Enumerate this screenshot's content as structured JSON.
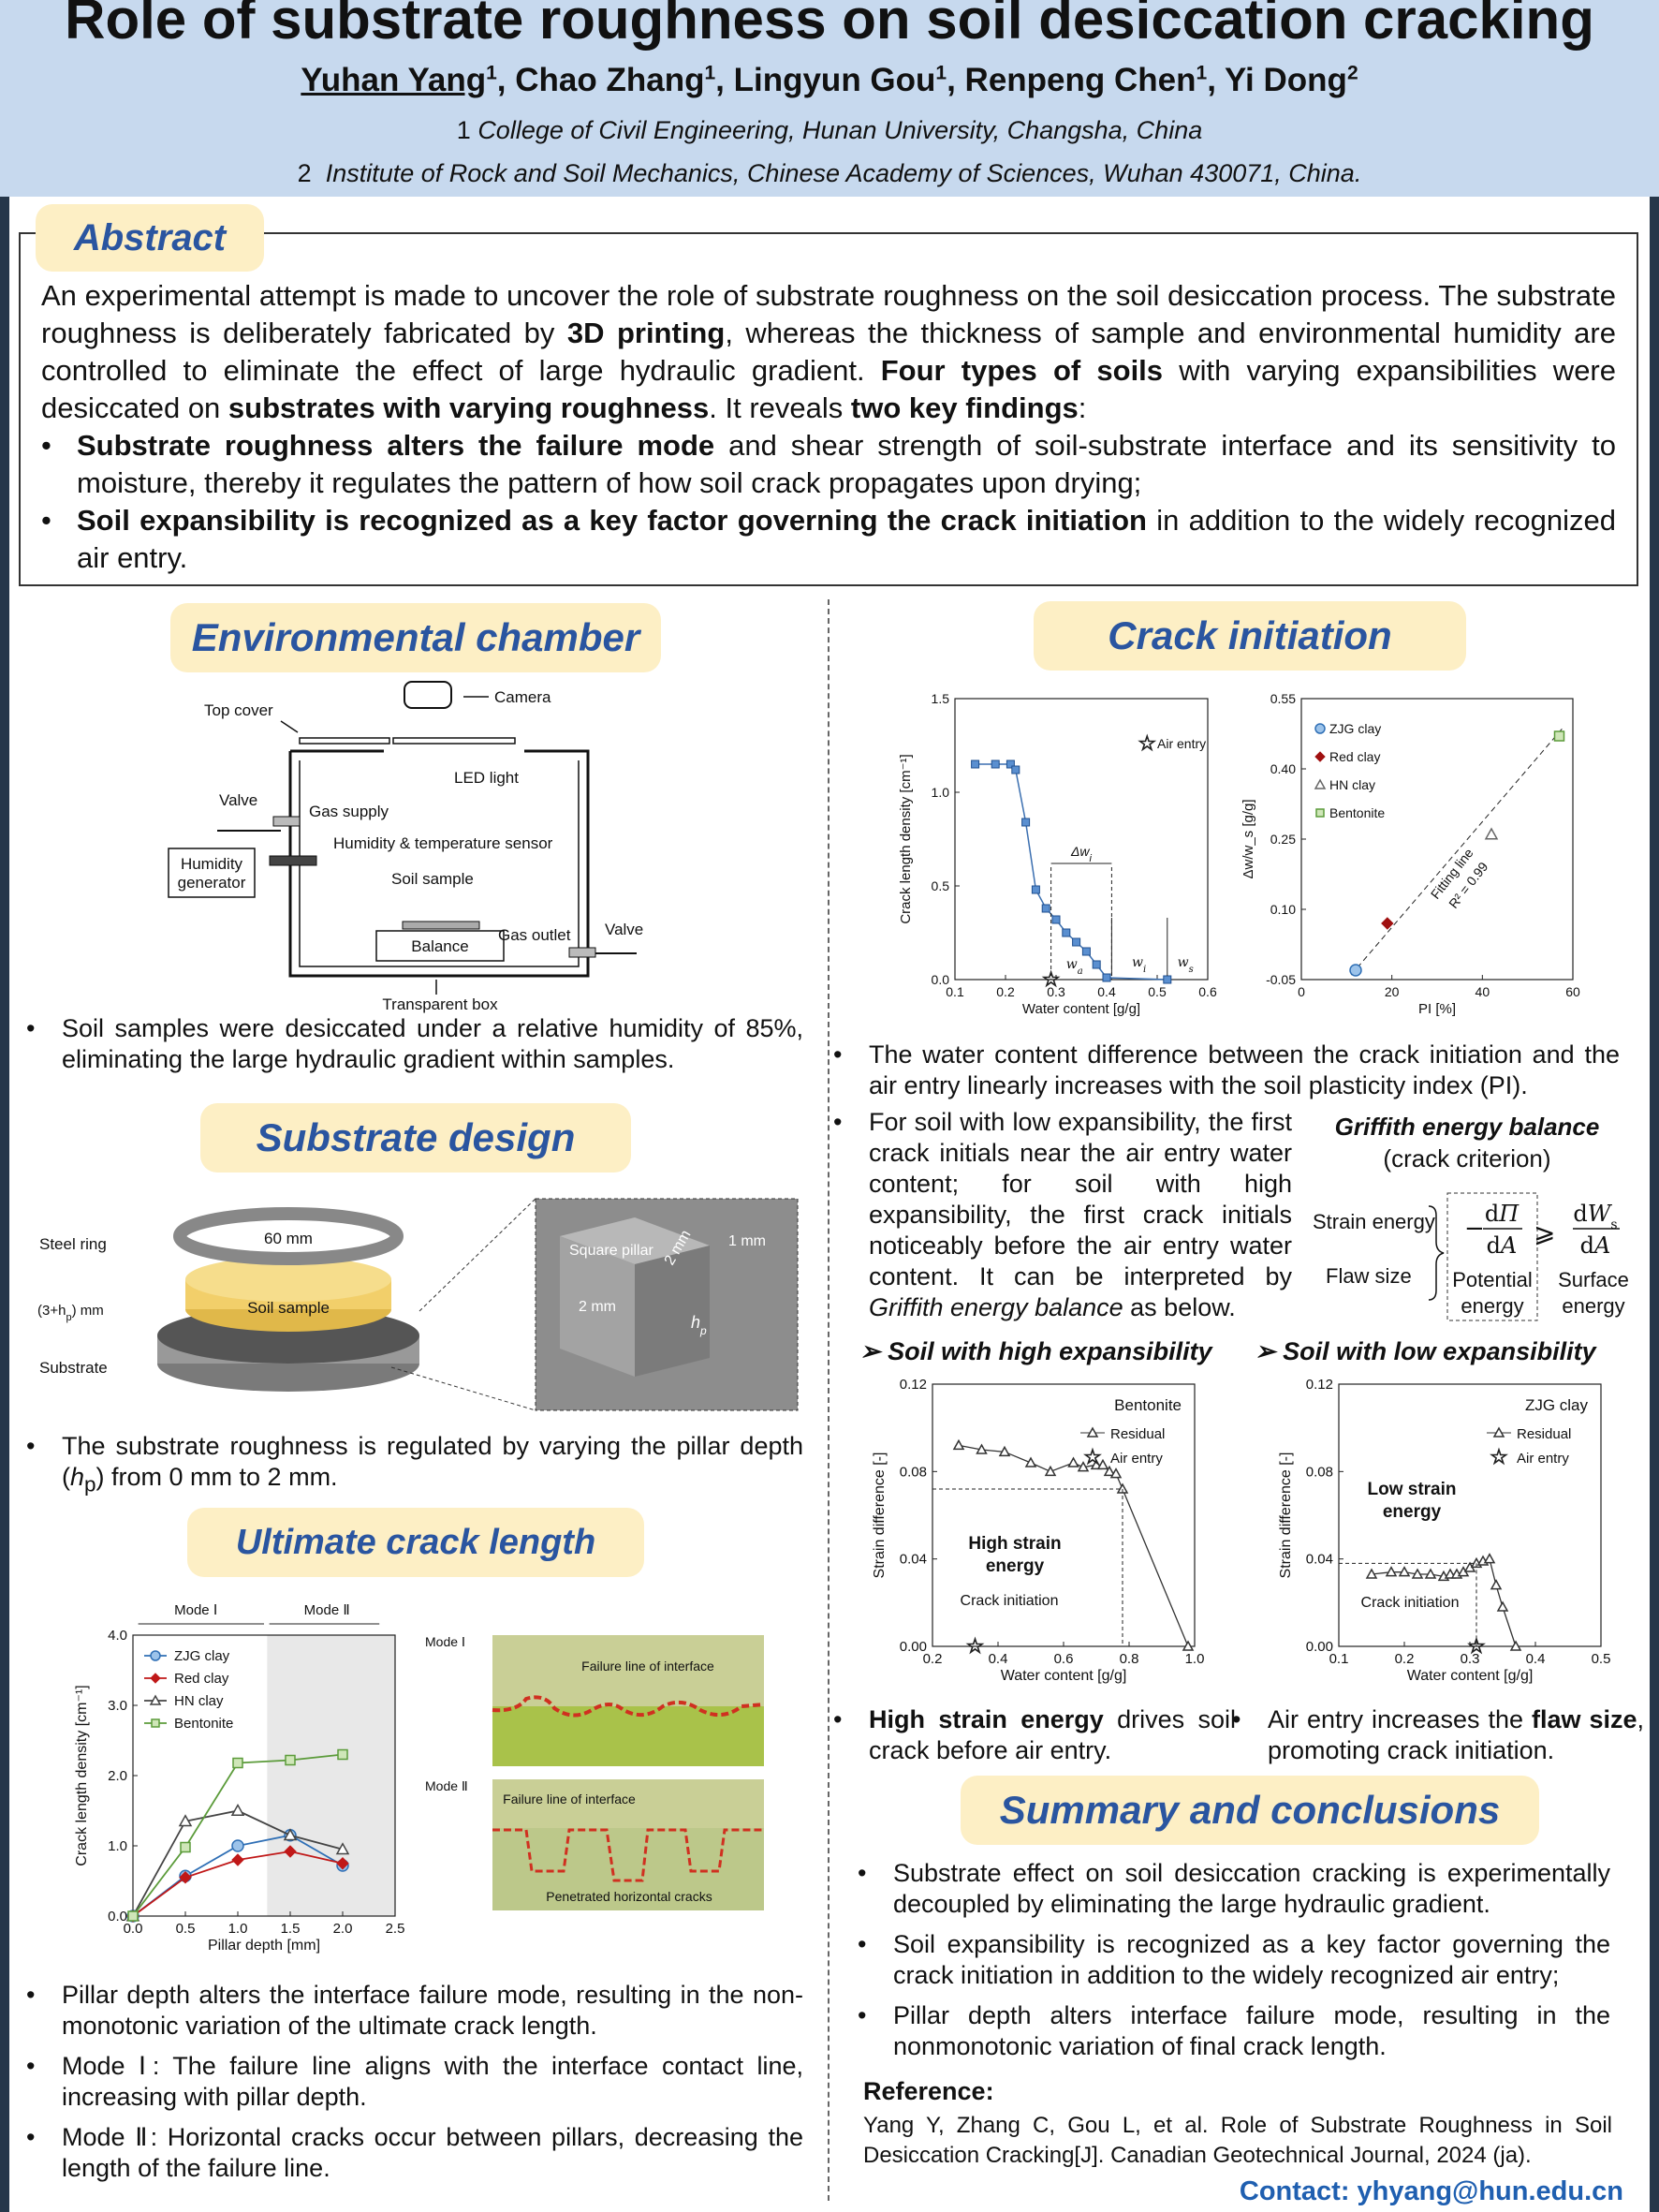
{
  "header": {
    "title": "Role of substrate roughness on soil desiccation cracking",
    "authors": [
      {
        "name": "Yuhan Yang",
        "sup": "1",
        "underline": true
      },
      {
        "name": "Chao Zhang",
        "sup": "1"
      },
      {
        "name": "Lingyun Gou",
        "sup": "1"
      },
      {
        "name": "Renpeng Chen",
        "sup": "1"
      },
      {
        "name": "Yi Dong",
        "sup": "2"
      }
    ],
    "affiliation_1_num": "1",
    "affiliation_1": "College of Civil Engineering, Hunan University, Changsha, China",
    "affiliation_2_num": "2",
    "affiliation_2": "Institute of Rock and Soil Mechanics, Chinese Academy of Sciences, Wuhan 430071, China."
  },
  "abstract": {
    "heading": "Abstract",
    "p1_a": "An experimental attempt is made to uncover the role of substrate roughness on the soil desiccation process. The substrate roughness is deliberately fabricated by ",
    "p1_b": "3D printing",
    "p1_c": ", whereas the thickness of sample and environmental humidity are controlled to eliminate the effect of large hydraulic gradient. ",
    "p1_d": "Four types of soils",
    "p1_e": " with varying expansibilities were desiccated on ",
    "p1_f": "substrates with varying roughness",
    "p1_g": ". It reveals ",
    "p1_h": "two key findings",
    "p1_i": ":",
    "bullet": "•",
    "b1_bold": "Substrate roughness alters the failure mode",
    "b1_rest": " and shear strength of soil-substrate interface and its sensitivity to moisture, thereby it regulates the pattern of how soil crack propagates upon drying;",
    "b2_bold": "Soil expansibility is recognized as a key factor governing the crack initiation",
    "b2_rest": " in addition to the widely recognized air entry."
  },
  "env": {
    "heading": "Environmental chamber",
    "labels": {
      "camera": "Camera",
      "top_cover": "Top cover",
      "led": "LED light",
      "valve1": "Valve",
      "gas_supply": "Gas supply",
      "hum_sensor": "Humidity & temperature sensor",
      "hum_gen1": "Humidity",
      "hum_gen2": "generator",
      "soil_sample": "Soil sample",
      "gas_outlet": "Gas outlet",
      "valve2": "Valve",
      "balance": "Balance",
      "box": "Transparent box"
    },
    "bullet": "Soil samples were desiccated under a relative humidity of 85%, eliminating the large hydraulic gradient within samples."
  },
  "substrate": {
    "heading": "Substrate design",
    "labels": {
      "steel_ring": "Steel ring",
      "mm60": "60 mm",
      "thick": "(3+h",
      "thick_sub": "p",
      "thick_end": ") mm",
      "soil": "Soil sample",
      "substrate": "Substrate",
      "square_pillar": "Square pillar",
      "mm2a": "2 mm",
      "mm2b": "2 mm",
      "mm1": "1 mm",
      "hp": "h",
      "hp_sub": "p"
    },
    "bullet_a": "The substrate roughness is regulated by varying the pillar depth (",
    "bullet_h": "h",
    "bullet_p": "p",
    "bullet_b": ") from 0 mm to 2 mm."
  },
  "ultimate": {
    "heading": "Ultimate crack length",
    "mode1": "Mode Ⅰ",
    "mode2": "Mode Ⅱ",
    "photo_mode1": "Mode Ⅰ",
    "photo_mode2": "Mode Ⅱ",
    "failure_line1": "Failure line of interface",
    "failure_line2": "Failure line of interface",
    "penetrated": "Penetrated horizontal cracks",
    "bullets": [
      "Pillar depth alters the interface failure mode, resulting in the non-monotonic variation of the ultimate crack length.",
      "Mode Ⅰ: The failure line aligns with the interface contact line, increasing with pillar depth.",
      "Mode Ⅱ:  Horizontal cracks occur between pillars, decreasing the length of the failure line."
    ]
  },
  "crack_init": {
    "heading": "Crack initiation",
    "bullet1": "The water content difference between the crack initiation and the air entry linearly increases with the soil plasticity index (PI).",
    "bullet2_a": "For soil with low expansibility, the first crack initials near the air entry water content; for soil with high expansibility, the first crack initials noticeably before the air entry water content. It can be interpreted by ",
    "bullet2_i": "Griffith energy balance",
    "bullet2_b": " as below.",
    "griffith_title": "Griffith energy balance",
    "griffith_sub": "(crack criterion)",
    "strain_energy": "Strain energy",
    "flaw_size": "Flaw size",
    "potential": "Potential",
    "surface": "Surface",
    "energy": "energy",
    "high_head": "Soil with high expansibility",
    "low_head": "Soil with low expansibility",
    "high_bullet_bold": "High strain energy",
    "high_bullet_rest": " drives soil crack before air entry.",
    "low_bullet_a": "Air entry increases the ",
    "low_bullet_bold": "flaw size",
    "low_bullet_b": ", promoting crack initiation."
  },
  "summary": {
    "heading": "Summary and conclusions",
    "bullets": [
      "Substrate effect on soil desiccation cracking is experimentally decoupled by eliminating the large hydraulic gradient.",
      "Soil expansibility is recognized as a key factor governing the crack initiation in addition to the widely recognized air entry;",
      "Pillar depth alters interface failure mode, resulting in the nonmonotonic variation of final crack length."
    ],
    "ref_head": "Reference:",
    "ref_text": "Yang Y, Zhang C, Gou L, et al. Role of Substrate Roughness in Soil Desiccation Cracking[J]. Canadian Geotechnical Journal, 2024 (ja).",
    "contact": "Contact: yhyang@hun.edu.cn"
  },
  "chart_data": [
    {
      "id": "ultimate_crack",
      "type": "line",
      "xlabel": "Pillar depth [mm]",
      "ylabel": "Crack length density [cm⁻¹]",
      "xlim": [
        0,
        2.5
      ],
      "ylim": [
        0,
        4.0
      ],
      "xticks": [
        "0.0",
        "0.5",
        "1.0",
        "1.5",
        "2.0",
        "2.5"
      ],
      "yticks": [
        "0.0",
        "1.0",
        "2.0",
        "3.0",
        "4.0"
      ],
      "x": [
        0,
        0.5,
        1.0,
        1.5,
        2.0
      ],
      "series": [
        {
          "name": "ZJG clay",
          "color": "#2f6fb5",
          "marker": "circle",
          "values": [
            0,
            0.57,
            1.0,
            1.15,
            0.72
          ]
        },
        {
          "name": "Red clay",
          "color": "#c01818",
          "marker": "diamond",
          "values": [
            0,
            0.55,
            0.8,
            0.92,
            0.75
          ]
        },
        {
          "name": "HN clay",
          "color": "#444444",
          "marker": "triangle",
          "values": [
            0,
            1.35,
            1.5,
            1.15,
            0.95
          ]
        },
        {
          "name": "Bentonite",
          "color": "#5b9b3a",
          "marker": "square",
          "values": [
            0,
            0.98,
            2.18,
            2.22,
            2.3
          ]
        }
      ]
    },
    {
      "id": "crack_density",
      "type": "line",
      "xlabel": "Water content [g/g]",
      "ylabel": "Crack length density [cm⁻¹]",
      "xlim": [
        0.1,
        0.6
      ],
      "ylim": [
        0,
        1.5
      ],
      "xticks": [
        "0.1",
        "0.2",
        "0.3",
        "0.4",
        "0.5",
        "0.6"
      ],
      "yticks": [
        "0.0",
        "0.5",
        "1.0",
        "1.5"
      ],
      "legend": "Air entry",
      "dw_label": "Δw",
      "dw_sub": "i",
      "wa": "w",
      "wa_sub": "a",
      "wi": "w",
      "wi_sub": "i",
      "ws": "w",
      "ws_sub": "s",
      "x": [
        0.14,
        0.18,
        0.21,
        0.22,
        0.24,
        0.26,
        0.28,
        0.3,
        0.32,
        0.34,
        0.36,
        0.38,
        0.4,
        0.52
      ],
      "values": [
        1.15,
        1.15,
        1.15,
        1.12,
        0.84,
        0.48,
        0.38,
        0.32,
        0.25,
        0.2,
        0.15,
        0.08,
        0.01,
        0.0
      ],
      "air_entry_x": 0.29
    },
    {
      "id": "dw_vs_pi",
      "type": "scatter",
      "xlabel": "PI [%]",
      "ylabel": "Δw/w_s [g/g]",
      "xlim": [
        0,
        60
      ],
      "ylim": [
        -0.05,
        0.55
      ],
      "xticks": [
        "0",
        "20",
        "40",
        "60"
      ],
      "yticks": [
        "-0.05",
        "0.10",
        "0.25",
        "0.40",
        "0.55"
      ],
      "fit_label": "Fitting line",
      "r2_label": "R² = 0.99",
      "series": [
        {
          "name": "ZJG clay",
          "color": "#2f6fb5",
          "marker": "circle",
          "x": 12,
          "y": -0.03
        },
        {
          "name": "Red clay",
          "color": "#a01010",
          "marker": "diamond",
          "x": 19,
          "y": 0.07
        },
        {
          "name": "HN clay",
          "color": "#666666",
          "marker": "triangle",
          "x": 42,
          "y": 0.26
        },
        {
          "name": "Bentonite",
          "color": "#5b9b3a",
          "marker": "square",
          "x": 57,
          "y": 0.47
        }
      ]
    },
    {
      "id": "high_exp",
      "type": "line",
      "title": "Bentonite",
      "xlabel": "Water content [g/g]",
      "ylabel": "Strain difference [-]",
      "xlim": [
        0.2,
        1.0
      ],
      "ylim": [
        0,
        0.12
      ],
      "xticks": [
        "0.2",
        "0.4",
        "0.6",
        "0.8",
        "1.0"
      ],
      "yticks": [
        "0.00",
        "0.04",
        "0.08",
        "0.12"
      ],
      "legend_residual": "Residual",
      "legend_air": "Air entry",
      "annot_strain": "High strain",
      "annot_energy": "energy",
      "annot_init": "Crack initiation",
      "x": [
        0.28,
        0.35,
        0.42,
        0.5,
        0.56,
        0.63,
        0.66,
        0.7,
        0.72,
        0.74,
        0.76,
        0.78,
        0.98
      ],
      "values": [
        0.092,
        0.09,
        0.089,
        0.084,
        0.08,
        0.084,
        0.082,
        0.083,
        0.083,
        0.08,
        0.079,
        0.072,
        0.0
      ],
      "air_entry_x": 0.33,
      "init_x": 0.78
    },
    {
      "id": "low_exp",
      "type": "line",
      "title": "ZJG clay",
      "xlabel": "Water content [g/g]",
      "ylabel": "Strain difference [-]",
      "xlim": [
        0.1,
        0.5
      ],
      "ylim": [
        0,
        0.12
      ],
      "xticks": [
        "0.1",
        "0.2",
        "0.3",
        "0.4",
        "0.5"
      ],
      "yticks": [
        "0.00",
        "0.04",
        "0.08",
        "0.12"
      ],
      "legend_residual": "Residual",
      "legend_air": "Air entry",
      "annot_strain": "Low strain",
      "annot_energy": "energy",
      "annot_init": "Crack initiation",
      "x": [
        0.15,
        0.18,
        0.2,
        0.22,
        0.24,
        0.26,
        0.27,
        0.28,
        0.29,
        0.3,
        0.31,
        0.32,
        0.33,
        0.34,
        0.35,
        0.37
      ],
      "values": [
        0.033,
        0.034,
        0.034,
        0.033,
        0.033,
        0.032,
        0.033,
        0.033,
        0.034,
        0.036,
        0.038,
        0.039,
        0.04,
        0.028,
        0.018,
        0.0
      ],
      "air_entry_x": 0.31,
      "init_x": 0.31
    }
  ]
}
